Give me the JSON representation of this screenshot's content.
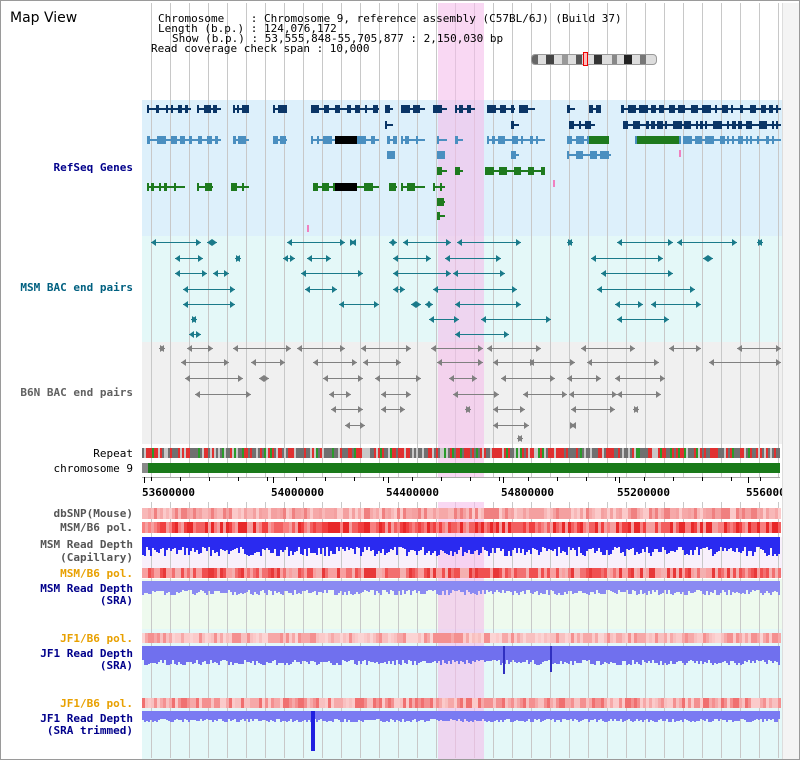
{
  "page_title": "Map View",
  "info": {
    "line1": "Chromosome    : Chromosome 9, reference assembly (C57BL/6J) (Build 37)",
    "line2": "Length (b.p.) : 124,076,172",
    "line3": "Show (b.p.) : 53,555,848-55,705,877 : 2,150,030 bp",
    "line4": "Read coverage check span : 10,000"
  },
  "tracks": {
    "refseq": "RefSeq Genes",
    "msm_bac": "MSM BAC end pairs",
    "b6n_bac": "B6N BAC end pairs",
    "repeat": "Repeat",
    "chromosome": "chromosome 9",
    "dbsnp": "dbSNP(Mouse)",
    "msm_pol": "MSM/B6 pol.",
    "msm_depth_cap_1": "MSM Read Depth",
    "msm_depth_cap_2": "(Capillary)",
    "msm_pol_sra": "MSM/B6 pol.",
    "msm_depth_sra_1": "MSM Read Depth",
    "msm_depth_sra_2": "(SRA)",
    "jf1_pol": "JF1/B6 pol.",
    "jf1_depth_1": "JF1 Read Depth",
    "jf1_depth_2": "(SRA)",
    "jf1_pol_trim": "JF1/B6 pol.",
    "jf1_trim_1": "JF1 Read Depth",
    "jf1_trim_2": "(SRA trimmed)"
  },
  "axis_ticks": [
    "53600000",
    "54000000",
    "54400000",
    "54800000",
    "55200000",
    "55600000"
  ],
  "colors": {
    "highlight": "#f8d8f0",
    "refseq_bg": "#ddf0fb",
    "msm_bg": "#e4f8f8",
    "b6n_bg": "#f0f0f0",
    "gene_dark": "#0a3566",
    "gene_mid": "#4a8fc0",
    "gene_green": "#1e7a1e",
    "msm_label": "#006080",
    "b6n_label": "#606060",
    "navy_label": "#00008b",
    "orange_label": "#e8a000",
    "depth_blue": "#2a2af0",
    "depth_violet": "#8080f0"
  }
}
